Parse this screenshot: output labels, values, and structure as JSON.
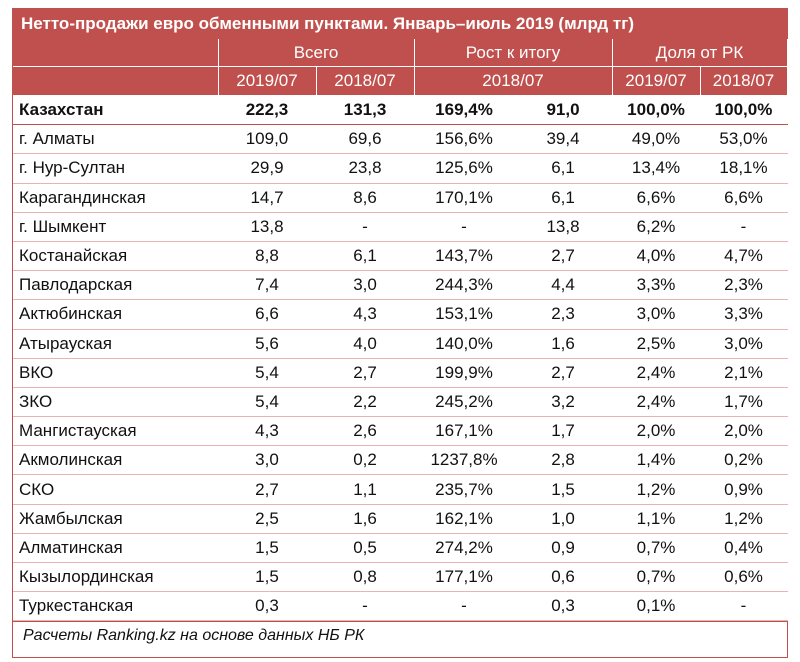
{
  "title": "Нетто-продажи евро обменными пунктами. Январь–июль 2019 (млрд тг)",
  "header": {
    "group_total": "Всего",
    "group_growth": "Рост к итогу",
    "group_share": "Доля от РК",
    "sub_total_2019": "2019/07",
    "sub_total_2018": "2018/07",
    "sub_growth": "2018/07",
    "sub_share_2019": "2019/07",
    "sub_share_2018": "2018/07"
  },
  "footer": "Расчеты Ranking.kz на основе данных НБ РК",
  "chart_data": {
    "type": "table",
    "title": "Нетто-продажи евро обменными пунктами. Январь–июль 2019 (млрд тг)",
    "columns": [
      "",
      "Всего 2019/07",
      "Всего 2018/07",
      "Рост к итогу %",
      "Рост к итогу 2018/07",
      "Доля от РК 2019/07",
      "Доля от РК 2018/07"
    ],
    "rows": [
      [
        "Казахстан",
        "222,3",
        "131,3",
        "169,4%",
        "91,0",
        "100,0%",
        "100,0%"
      ],
      [
        "г. Алматы",
        "109,0",
        "69,6",
        "156,6%",
        "39,4",
        "49,0%",
        "53,0%"
      ],
      [
        "г. Нур-Султан",
        "29,9",
        "23,8",
        "125,6%",
        "6,1",
        "13,4%",
        "18,1%"
      ],
      [
        "Карагандинская",
        "14,7",
        "8,6",
        "170,1%",
        "6,1",
        "6,6%",
        "6,6%"
      ],
      [
        "г. Шымкент",
        "13,8",
        "-",
        "-",
        "13,8",
        "6,2%",
        "-"
      ],
      [
        "Костанайская",
        "8,8",
        "6,1",
        "143,7%",
        "2,7",
        "4,0%",
        "4,7%"
      ],
      [
        "Павлодарская",
        "7,4",
        "3,0",
        "244,3%",
        "4,4",
        "3,3%",
        "2,3%"
      ],
      [
        "Актюбинская",
        "6,6",
        "4,3",
        "153,1%",
        "2,3",
        "3,0%",
        "3,3%"
      ],
      [
        "Атырауская",
        "5,6",
        "4,0",
        "140,0%",
        "1,6",
        "2,5%",
        "3,0%"
      ],
      [
        "ВКО",
        "5,4",
        "2,7",
        "199,9%",
        "2,7",
        "2,4%",
        "2,1%"
      ],
      [
        "ЗКО",
        "5,4",
        "2,2",
        "245,2%",
        "3,2",
        "2,4%",
        "1,7%"
      ],
      [
        "Мангистауская",
        "4,3",
        "2,6",
        "167,1%",
        "1,7",
        "2,0%",
        "2,0%"
      ],
      [
        "Акмолинская",
        "3,0",
        "0,2",
        "1237,8%",
        "2,8",
        "1,4%",
        "0,2%"
      ],
      [
        "СКО",
        "2,7",
        "1,1",
        "235,7%",
        "1,5",
        "1,2%",
        "0,9%"
      ],
      [
        "Жамбылская",
        "2,5",
        "1,6",
        "162,1%",
        "1,0",
        "1,1%",
        "1,2%"
      ],
      [
        "Алматинская",
        "1,5",
        "0,5",
        "274,2%",
        "0,9",
        "0,7%",
        "0,4%"
      ],
      [
        "Кызылординская",
        "1,5",
        "0,8",
        "177,1%",
        "0,6",
        "0,7%",
        "0,6%"
      ],
      [
        "Туркестанская",
        "0,3",
        "-",
        "-",
        "0,3",
        "0,1%",
        "-"
      ]
    ]
  },
  "colors": {
    "accent": "#c0504d",
    "row_line": "#e8b4b0"
  }
}
